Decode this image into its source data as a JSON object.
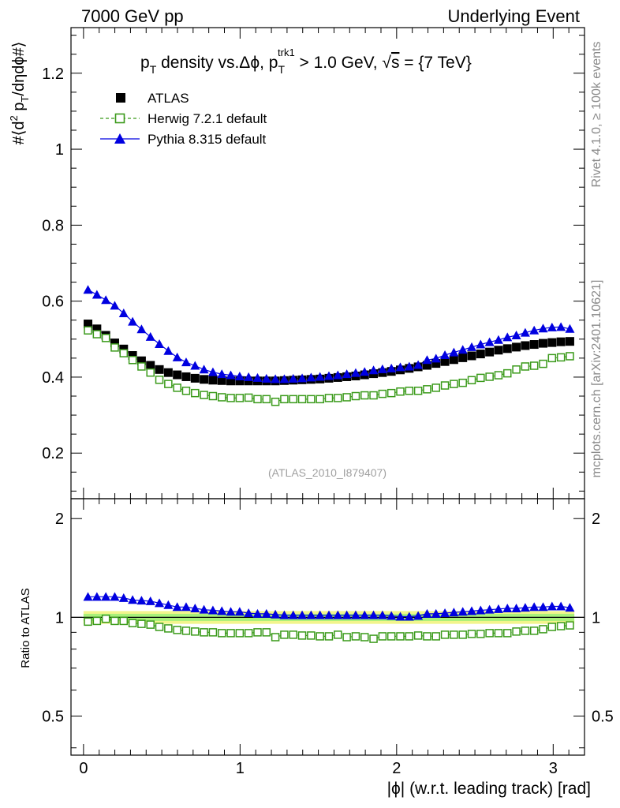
{
  "header": {
    "left": "7000 GeV pp",
    "right": "Underlying Event"
  },
  "side_text": {
    "rivet": "Rivet 4.1.0, ≥ 100k events",
    "mcplots": "mcplots.cern.ch [arXiv:2401.10621]"
  },
  "analysis_tag": "(ATLAS_2010_I879407)",
  "title": {
    "part1": "p",
    "sub_T": "T",
    "part2": " density vs.Δϕ, p",
    "sup_trk1": "trk1",
    "part3": " > 1.0 GeV, ",
    "sqrt": "√",
    "s": "s",
    "part4": " = {7 TeV}"
  },
  "legend": {
    "atlas": "ATLAS",
    "herwig": "Herwig 7.2.1 default",
    "pythia": "Pythia 8.315 default"
  },
  "colors": {
    "atlas": "#000000",
    "herwig": "#3a9a1a",
    "pythia": "#0000e0",
    "band_inner": "#a8f07a",
    "band_outer": "#f2f58c"
  },
  "chart_data": {
    "type": "scatter",
    "title": "pT density vs.Δϕ, pT trk1 > 1.0 GeV, √s = {7 TeV}",
    "ylabel_main": "#⟨d² p_T/dηdϕ#⟩",
    "ylabel_ratio": "Ratio to ATLAS",
    "xlabel": "|ϕ| (w.r.t. leading track) [rad]",
    "xlim": [
      -0.08,
      3.2
    ],
    "ylim_main": [
      0.08,
      1.32
    ],
    "ylim_ratio": [
      0.38,
      2.3
    ],
    "main_y_ticks": [
      "0.2",
      "0.4",
      "0.6",
      "0.8",
      "1",
      "1.2"
    ],
    "ratio_y_ticks": [
      "0.5",
      "1",
      "2"
    ],
    "x_ticks": [
      "0",
      "1",
      "2",
      "3"
    ],
    "x": [
      0.0285,
      0.0855,
      0.1425,
      0.1995,
      0.2565,
      0.3135,
      0.3705,
      0.4275,
      0.4845,
      0.5415,
      0.5985,
      0.6555,
      0.7125,
      0.7695,
      0.8265,
      0.8835,
      0.9405,
      0.9975,
      1.0545,
      1.1115,
      1.1685,
      1.2255,
      1.2825,
      1.3395,
      1.3965,
      1.4535,
      1.5105,
      1.5675,
      1.6245,
      1.6815,
      1.7385,
      1.7955,
      1.8525,
      1.9095,
      1.9665,
      2.0235,
      2.0805,
      2.1375,
      2.1945,
      2.2515,
      2.3085,
      2.3655,
      2.4225,
      2.4795,
      2.5365,
      2.5935,
      2.6505,
      2.7075,
      2.7645,
      2.8215,
      2.8785,
      2.9355,
      2.9925,
      3.0495,
      3.1065
    ],
    "series": [
      {
        "name": "ATLAS",
        "values": [
          0.54,
          0.527,
          0.51,
          0.49,
          0.474,
          0.457,
          0.443,
          0.431,
          0.42,
          0.412,
          0.406,
          0.401,
          0.397,
          0.394,
          0.392,
          0.391,
          0.39,
          0.39,
          0.39,
          0.39,
          0.39,
          0.39,
          0.391,
          0.392,
          0.393,
          0.394,
          0.395,
          0.397,
          0.399,
          0.401,
          0.403,
          0.406,
          0.409,
          0.412,
          0.415,
          0.419,
          0.423,
          0.427,
          0.431,
          0.436,
          0.441,
          0.446,
          0.451,
          0.456,
          0.461,
          0.466,
          0.471,
          0.475,
          0.479,
          0.483,
          0.486,
          0.489,
          0.491,
          0.493,
          0.494
        ]
      },
      {
        "name": "Herwig 7.2.1 default",
        "values": [
          0.523,
          0.513,
          0.503,
          0.478,
          0.463,
          0.445,
          0.428,
          0.412,
          0.393,
          0.382,
          0.372,
          0.364,
          0.358,
          0.353,
          0.35,
          0.347,
          0.345,
          0.345,
          0.346,
          0.342,
          0.342,
          0.335,
          0.342,
          0.342,
          0.342,
          0.342,
          0.342,
          0.345,
          0.345,
          0.347,
          0.35,
          0.352,
          0.352,
          0.356,
          0.358,
          0.362,
          0.364,
          0.364,
          0.368,
          0.372,
          0.378,
          0.382,
          0.385,
          0.392,
          0.398,
          0.401,
          0.405,
          0.41,
          0.42,
          0.428,
          0.43,
          0.435,
          0.45,
          0.452,
          0.455
        ]
      },
      {
        "name": "Pythia 8.315 default",
        "values": [
          0.63,
          0.617,
          0.603,
          0.588,
          0.568,
          0.546,
          0.526,
          0.506,
          0.487,
          0.469,
          0.452,
          0.439,
          0.43,
          0.42,
          0.413,
          0.408,
          0.405,
          0.402,
          0.4,
          0.398,
          0.396,
          0.395,
          0.395,
          0.396,
          0.397,
          0.399,
          0.401,
          0.403,
          0.405,
          0.408,
          0.411,
          0.414,
          0.418,
          0.421,
          0.423,
          0.426,
          0.428,
          0.432,
          0.445,
          0.449,
          0.458,
          0.465,
          0.472,
          0.479,
          0.486,
          0.492,
          0.498,
          0.505,
          0.51,
          0.517,
          0.523,
          0.528,
          0.531,
          0.532,
          0.527
        ]
      }
    ],
    "ratio_series": [
      {
        "name": "Herwig 7.2.1 default",
        "values": [
          0.97,
          0.975,
          0.99,
          0.975,
          0.975,
          0.96,
          0.955,
          0.95,
          0.935,
          0.925,
          0.915,
          0.91,
          0.905,
          0.9,
          0.9,
          0.895,
          0.895,
          0.895,
          0.895,
          0.9,
          0.9,
          0.87,
          0.885,
          0.885,
          0.88,
          0.88,
          0.875,
          0.875,
          0.885,
          0.87,
          0.875,
          0.87,
          0.86,
          0.875,
          0.875,
          0.875,
          0.875,
          0.88,
          0.875,
          0.875,
          0.885,
          0.885,
          0.885,
          0.89,
          0.89,
          0.895,
          0.895,
          0.895,
          0.905,
          0.91,
          0.91,
          0.92,
          0.935,
          0.94,
          0.945
        ]
      },
      {
        "name": "Pythia 8.315 default",
        "values": [
          1.155,
          1.155,
          1.155,
          1.155,
          1.145,
          1.13,
          1.125,
          1.12,
          1.105,
          1.09,
          1.075,
          1.075,
          1.065,
          1.055,
          1.05,
          1.045,
          1.04,
          1.04,
          1.03,
          1.025,
          1.025,
          1.02,
          1.015,
          1.015,
          1.015,
          1.015,
          1.015,
          1.015,
          1.015,
          1.015,
          1.015,
          1.015,
          1.015,
          1.015,
          1.01,
          1.005,
          1.005,
          1.01,
          1.025,
          1.025,
          1.03,
          1.035,
          1.04,
          1.045,
          1.05,
          1.055,
          1.06,
          1.065,
          1.065,
          1.07,
          1.075,
          1.075,
          1.08,
          1.08,
          1.07
        ]
      }
    ],
    "ratio_band": {
      "inner": [
        0.975,
        1.025
      ],
      "outer": [
        0.955,
        1.045
      ]
    }
  }
}
